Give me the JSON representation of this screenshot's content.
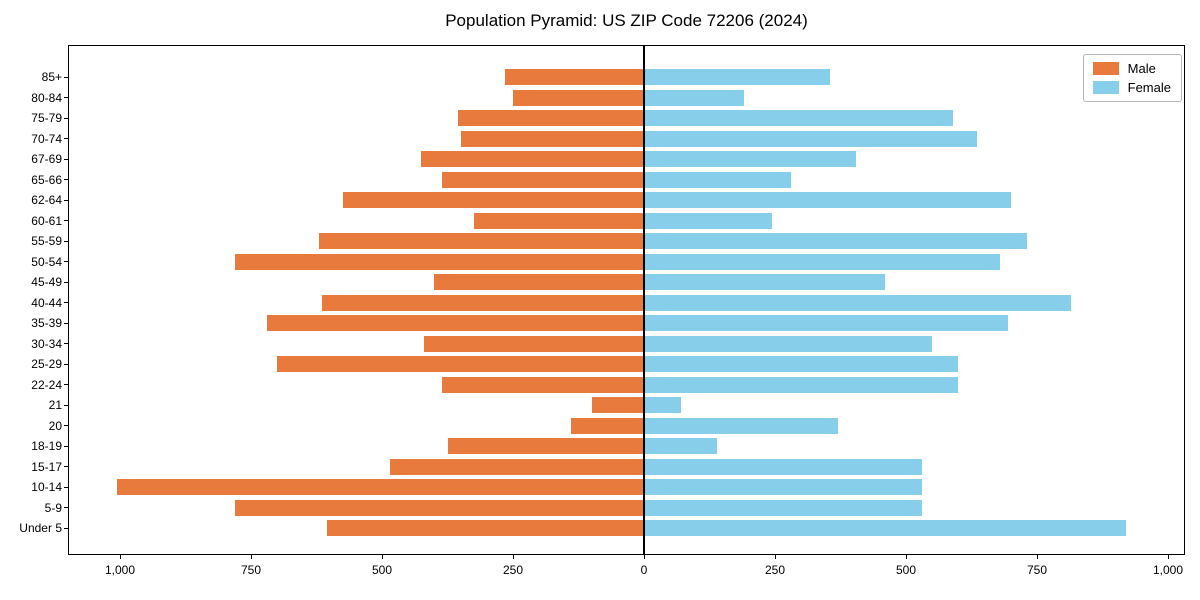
{
  "title": "Population Pyramid: US ZIP Code 72206 (2024)",
  "legend": {
    "male_label": "Male",
    "female_label": "Female"
  },
  "colors": {
    "male": "#E87A3D",
    "female": "#87CEEB",
    "axis": "#000000",
    "legend_border": "#b7b7b7"
  },
  "chart_data": {
    "type": "bar",
    "subtype": "population-pyramid",
    "orientation": "horizontal",
    "title": "Population Pyramid: US ZIP Code 72206 (2024)",
    "xlabel": "",
    "ylabel": "",
    "categories_top_to_bottom": [
      "85+",
      "80-84",
      "75-79",
      "70-74",
      "67-69",
      "65-66",
      "62-64",
      "60-61",
      "55-59",
      "50-54",
      "45-49",
      "40-44",
      "35-39",
      "30-34",
      "25-29",
      "22-24",
      "21",
      "20",
      "18-19",
      "15-17",
      "10-14",
      "5-9",
      "Under 5"
    ],
    "series": [
      {
        "name": "Male",
        "side": "left",
        "color": "#E87A3D",
        "values": [
          265,
          250,
          355,
          350,
          425,
          385,
          575,
          325,
          620,
          780,
          400,
          615,
          720,
          420,
          700,
          385,
          100,
          140,
          375,
          485,
          1005,
          780,
          605
        ]
      },
      {
        "name": "Female",
        "side": "right",
        "color": "#87CEEB",
        "values": [
          355,
          190,
          590,
          635,
          405,
          280,
          700,
          245,
          730,
          680,
          460,
          815,
          695,
          550,
          600,
          600,
          70,
          370,
          140,
          530,
          530,
          530,
          920
        ]
      }
    ],
    "x_tick_values": [
      -1000,
      -750,
      -500,
      -250,
      0,
      250,
      500,
      750,
      1000
    ],
    "x_tick_labels": [
      "1,000",
      "750",
      "500",
      "250",
      "0",
      "250",
      "500",
      "750",
      "1,000"
    ],
    "xlim": [
      -1100,
      1035
    ],
    "grid": false,
    "zero_line": true,
    "legend_position": "upper right"
  }
}
